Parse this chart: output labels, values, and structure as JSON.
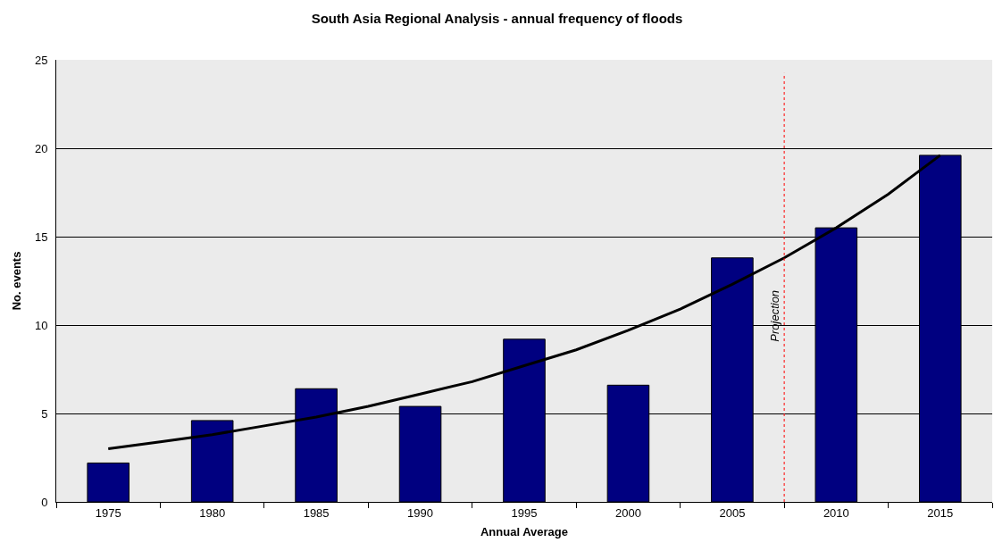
{
  "chart_data": {
    "type": "bar",
    "title": "South Asia Regional Analysis - annual frequency of floods",
    "xlabel": "Annual Average",
    "ylabel": "No. events",
    "x": [
      1975,
      1980,
      1985,
      1990,
      1995,
      2000,
      2005,
      2010,
      2015
    ],
    "series": [
      {
        "color": "#000080",
        "values": [
          2.2,
          4.6,
          6.4,
          5.4,
          9.2,
          6.6,
          13.8,
          15.5,
          19.6
        ]
      },
      {
        "type": "line",
        "color": "#000000",
        "line_style": "solid",
        "marker": "none",
        "x": [
          1975,
          1977.5,
          1980,
          1982.5,
          1985,
          1987.5,
          1990,
          1992.5,
          1995,
          1997.5,
          2000,
          2002.5,
          2005,
          2007.5,
          2010,
          2012.5,
          2015
        ],
        "values": [
          3.0,
          3.4,
          3.8,
          4.3,
          4.8,
          5.4,
          6.1,
          6.8,
          7.7,
          8.6,
          9.7,
          10.9,
          12.3,
          13.8,
          15.5,
          17.4,
          19.6
        ]
      }
    ],
    "xlim": [
      1972.5,
      2017.5
    ],
    "xticks": [
      1975,
      1980,
      1985,
      1990,
      1995,
      2000,
      2005,
      2010,
      2015
    ],
    "ylim": [
      0,
      25
    ],
    "yticks": [
      0,
      5,
      10,
      15,
      20,
      25
    ],
    "ref_lines": [
      {
        "axis": "x",
        "value": 2007.5,
        "label": "Projection",
        "color": "#ff0000",
        "line_style": "dotted"
      }
    ],
    "grid": "y"
  }
}
